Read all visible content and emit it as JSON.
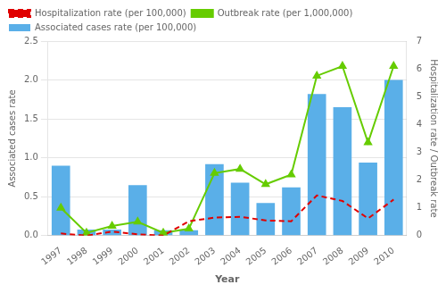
{
  "chart_data": {
    "type": "bar",
    "categories": [
      "1997",
      "1998",
      "1999",
      "2000",
      "2001",
      "2002",
      "2003",
      "2004",
      "2005",
      "2006",
      "2007",
      "2008",
      "2009",
      "2010"
    ],
    "series": [
      {
        "name": "Associated cases rate (per 100,000)",
        "type": "bar",
        "color": "#5aafe8",
        "axis": "y",
        "values": [
          0.9,
          0.08,
          0.08,
          0.65,
          0.07,
          0.07,
          0.92,
          0.68,
          0.42,
          0.62,
          1.82,
          1.65,
          0.94,
          2.0
        ]
      },
      {
        "name": "Hospitalization rate (per 100,000)",
        "type": "line",
        "color": "#e00000",
        "axis": "y2",
        "line_style": "dashed",
        "values": [
          0.08,
          0.0,
          0.15,
          0.05,
          0.0,
          0.52,
          0.65,
          0.68,
          0.55,
          0.52,
          1.45,
          1.25,
          0.62,
          1.3
        ]
      },
      {
        "name": "Outbreak rate (per 1,000,000)",
        "type": "line",
        "color": "#66cc00",
        "axis": "y2",
        "line_style": "solid",
        "marker": "triangle",
        "values": [
          1.0,
          0.1,
          0.35,
          0.5,
          0.1,
          0.25,
          2.25,
          2.4,
          1.85,
          2.2,
          5.75,
          6.1,
          3.35,
          6.1
        ]
      }
    ],
    "xlabel": "Year",
    "ylabel": "Associated cases rate",
    "y2label": "Hospitalization rate / Outbreak rate",
    "ylim": [
      0,
      2.5
    ],
    "yticks": [
      {
        "value": 0,
        "label": "0.0"
      },
      0.5,
      {
        "value": 1,
        "label": "1.0"
      },
      1.5,
      {
        "value": 2,
        "label": "2.0"
      },
      2.5
    ],
    "y2lim": [
      0,
      7
    ],
    "y2ticks": [
      0,
      1,
      2,
      3,
      4,
      5,
      6,
      7
    ],
    "grid": true,
    "legend": "upper left"
  }
}
